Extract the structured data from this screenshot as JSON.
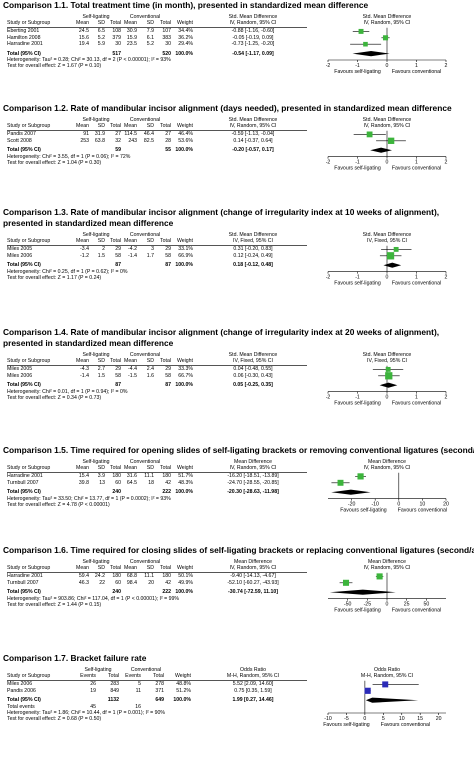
{
  "comparisons": [
    {
      "title": "Comparison 1.1. Total treatment time (in month), presented in standardized mean difference",
      "group1": "Self-ligating",
      "group2": "Conventional",
      "columns": [
        "Study or Subgroup",
        "Mean",
        "SD",
        "Total",
        "Mean",
        "SD",
        "Total",
        "Weight"
      ],
      "effect_header": "Std. Mean Difference",
      "effect_method": "IV, Random, 95% CI",
      "plot_header": "Std. Mean Difference",
      "plot_method": "IV, Random, 95% CI",
      "studies": [
        {
          "name": "Eberting 2001",
          "cells": [
            "24.5",
            "6.5",
            "108",
            "30.9",
            "7.9",
            "107",
            "34.4%"
          ],
          "ci_text": "-0.88 [-1.16, -0.60]",
          "est": -0.88,
          "lo": -1.16,
          "hi": -0.6,
          "w": 34.4
        },
        {
          "name": "Hamilton 2008",
          "cells": [
            "15.6",
            "5.2",
            "379",
            "15.9",
            "6.1",
            "383",
            "36.2%"
          ],
          "ci_text": "-0.05 [-0.19, 0.09]",
          "est": -0.05,
          "lo": -0.19,
          "hi": 0.09,
          "w": 36.2
        },
        {
          "name": "Harradine 2001",
          "cells": [
            "19.4",
            "5.9",
            "30",
            "23.5",
            "5.2",
            "30",
            "29.4%"
          ],
          "ci_text": "-0.73 [-1.25, -0.20]",
          "est": -0.73,
          "lo": -1.25,
          "hi": -0.2,
          "w": 29.4
        }
      ],
      "total": {
        "label": "Total (95% CI)",
        "n1": "517",
        "n2": "520",
        "weight": "100.0%",
        "ci_text": "-0.54 [-1.17, 0.09]",
        "est": -0.54,
        "lo": -1.17,
        "hi": 0.09
      },
      "heterogeneity": "Heterogeneity: Tau² = 0.28; Chi² = 30.13, df = 2 (P < 0.00001); I² = 93%",
      "overall": "Test for overall effect: Z = 1.67 (P = 0.10)",
      "axis": {
        "min": -2,
        "max": 2,
        "ticks": [
          "-2",
          "-1",
          "0",
          "1",
          "2"
        ]
      },
      "favours_left": "Favours self-ligating",
      "favours_right": "Favours conventional"
    },
    {
      "title": "Comparison 1.2. Rate of mandibular incisor alignment (days needed), presented in standardized mean difference",
      "group1": "Self-ligating",
      "group2": "Conventional",
      "columns": [
        "Study or Subgroup",
        "Mean",
        "SD",
        "Total",
        "Mean",
        "SD",
        "Total",
        "Weight"
      ],
      "effect_header": "Std. Mean Difference",
      "effect_method": "IV, Random, 95% CI",
      "plot_header": "Std. Mean Difference",
      "plot_method": "IV, Random, 95% CI",
      "studies": [
        {
          "name": "Pandis 2007",
          "cells": [
            "91",
            "31.9",
            "27",
            "114.5",
            "46.4",
            "27",
            "46.4%"
          ],
          "ci_text": "-0.59 [-1.13, -0.04]",
          "est": -0.59,
          "lo": -1.13,
          "hi": -0.04,
          "w": 46.4
        },
        {
          "name": "Scott 2008",
          "cells": [
            "253",
            "63.8",
            "32",
            "243",
            "82.5",
            "28",
            "53.6%"
          ],
          "ci_text": "0.14 [-0.37, 0.64]",
          "est": 0.14,
          "lo": -0.37,
          "hi": 0.64,
          "w": 53.6
        }
      ],
      "total": {
        "label": "Total (95% CI)",
        "n1": "59",
        "n2": "55",
        "weight": "100.0%",
        "ci_text": "-0.20 [-0.57, 0.17]",
        "est": -0.2,
        "lo": -0.57,
        "hi": 0.17
      },
      "heterogeneity": "Heterogeneity: Chi² = 3.55, df = 1 (P = 0.06); I² = 72%",
      "overall": "Test for overall effect: Z = 1.04 (P = 0.30)",
      "axis": {
        "min": -2,
        "max": 2,
        "ticks": [
          "-2",
          "-1",
          "0",
          "1",
          "2"
        ]
      },
      "favours_left": "Favours self-ligating",
      "favours_right": "Favours conventional"
    },
    {
      "title": "Comparison 1.3. Rate of mandibular incisor alignment (change of irregularity index at 10 weeks of alignment), presented in standardized mean difference",
      "title_line1": "Comparison 1.3. Rate of mandibular incisor alignment (change of irregularity index at 10 weeks of alignment),",
      "title_line2": "presented in standardized mean difference",
      "group1": "Self-ligating",
      "group2": "Conventional",
      "columns": [
        "Study or Subgroup",
        "Mean",
        "SD",
        "Total",
        "Mean",
        "SD",
        "Total",
        "Weight"
      ],
      "effect_header": "Std. Mean Difference",
      "effect_method": "IV, Fixed, 95% CI",
      "plot_header": "Std. Mean Difference",
      "plot_method": "IV, Fixed, 95% CI",
      "studies": [
        {
          "name": "Miles 2005",
          "cells": [
            "-3.4",
            "2",
            "29",
            "-4.2",
            "3",
            "29",
            "33.1%"
          ],
          "ci_text": "0.31 [-0.20, 0.83]",
          "est": 0.31,
          "lo": -0.2,
          "hi": 0.83,
          "w": 33.1
        },
        {
          "name": "Miles 2006",
          "cells": [
            "-1.2",
            "1.5",
            "58",
            "-1.4",
            "1.7",
            "58",
            "66.9%"
          ],
          "ci_text": "0.12 [-0.24, 0.49]",
          "est": 0.12,
          "lo": -0.24,
          "hi": 0.49,
          "w": 66.9
        }
      ],
      "total": {
        "label": "Total (95% CI)",
        "n1": "87",
        "n2": "87",
        "weight": "100.0%",
        "ci_text": "0.18 [-0.12, 0.48]",
        "est": 0.18,
        "lo": -0.12,
        "hi": 0.48
      },
      "heterogeneity": "Heterogeneity: Chi² = 0.25, df = 1 (P = 0.62); I² = 0%",
      "overall": "Test for overall effect: Z = 1.17 (P = 0.24)",
      "axis": {
        "min": -2,
        "max": 2,
        "ticks": [
          "-2",
          "-1",
          "0",
          "1",
          "2"
        ]
      },
      "favours_left": "Favours self-ligating",
      "favours_right": "Favours conventional"
    },
    {
      "title": "Comparison 1.4. Rate of mandibular incisor alignment (change of irregularity index at 20 weeks of alignment), presented in standardized mean difference",
      "title_line1": "Comparison 1.4. Rate of mandibular incisor alignment (change of irregularity index at 20 weeks of alignment),",
      "title_line2": "presented in standardized mean difference",
      "group1": "Self-ligating",
      "group2": "Conventional",
      "columns": [
        "Study or Subgroup",
        "Mean",
        "SD",
        "Total",
        "Mean",
        "SD",
        "Total",
        "Weight"
      ],
      "effect_header": "Std. Mean Difference",
      "effect_method": "IV, Fixed, 95% CI",
      "plot_header": "Std. Mean Difference",
      "plot_method": "IV, Fixed, 95% CI",
      "studies": [
        {
          "name": "Miles 2005",
          "cells": [
            "-4.3",
            "2.7",
            "29",
            "-4.4",
            "2.4",
            "29",
            "33.3%"
          ],
          "ci_text": "0.04 [-0.48, 0.55]",
          "est": 0.04,
          "lo": -0.48,
          "hi": 0.55,
          "w": 33.3
        },
        {
          "name": "Miles 2006",
          "cells": [
            "-1.4",
            "1.5",
            "58",
            "-1.5",
            "1.6",
            "58",
            "66.7%"
          ],
          "ci_text": "0.06 [-0.30, 0.43]",
          "est": 0.06,
          "lo": -0.3,
          "hi": 0.43,
          "w": 66.7
        }
      ],
      "total": {
        "label": "Total (95% CI)",
        "n1": "87",
        "n2": "87",
        "weight": "100.0%",
        "ci_text": "0.05 [-0.25, 0.35]",
        "est": 0.05,
        "lo": -0.25,
        "hi": 0.35
      },
      "heterogeneity": "Heterogeneity: Chi² = 0.01, df = 1 (P = 0.94); I² = 0%",
      "overall": "Test for overall effect: Z = 0.34 (P = 0.73)",
      "axis": {
        "min": -2,
        "max": 2,
        "ticks": [
          "-2",
          "-1",
          "0",
          "1",
          "2"
        ]
      },
      "favours_left": "Favours self-ligating",
      "favours_right": "Favours conventional"
    },
    {
      "title": "Comparison 1.5. Time required for opening slides of self-ligating brackets or removing conventional ligatures (second/arch)",
      "group1": "Self-ligating",
      "group2": "Conventional",
      "columns": [
        "Study or Subgroup",
        "Mean",
        "SD",
        "Total",
        "Mean",
        "SD",
        "Total",
        "Weight"
      ],
      "effect_header": "Mean Difference",
      "effect_method": "IV, Random, 95% CI",
      "plot_header": "Mean Difference",
      "plot_method": "IV, Random, 95% CI",
      "studies": [
        {
          "name": "Harradine 2001",
          "cells": [
            "15.4",
            "3.9",
            "180",
            "31.6",
            "11.1",
            "180",
            "51.7%"
          ],
          "ci_text": "-16.20 [-18.51, -13.89]",
          "est": -16.2,
          "lo": -18.51,
          "hi": -13.89,
          "w": 51.7
        },
        {
          "name": "Turnbull 2007",
          "cells": [
            "39.8",
            "13",
            "60",
            "64.5",
            "18",
            "42",
            "48.3%"
          ],
          "ci_text": "-24.70 [-28.55, -20.85]",
          "est": -24.7,
          "lo": -28.55,
          "hi": -20.85,
          "w": 48.3
        }
      ],
      "total": {
        "label": "Total (95% CI)",
        "n1": "240",
        "n2": "222",
        "weight": "100.0%",
        "ci_text": "-20.30 [-28.63, -11.98]",
        "est": -20.3,
        "lo": -28.63,
        "hi": -11.98
      },
      "heterogeneity": "Heterogeneity: Tau² = 33.50; Chi² = 13.77, df = 1 (P = 0.0002); I² = 93%",
      "overall": "Test for overall effect: Z = 4.78 (P < 0.00001)",
      "axis": {
        "min": -30,
        "max": 20,
        "ticks": [
          "-20",
          "-10",
          "0",
          "10",
          "20"
        ],
        "tick_values": [
          -20,
          -10,
          0,
          10,
          20
        ]
      },
      "favours_left": "Favours self-ligating",
      "favours_right": "Favours conventional"
    },
    {
      "title": "Comparison 1.6. Time required for closing slides of self-ligating brackets or replacing conventional ligatures (second/arch)",
      "group1": "Self-ligating",
      "group2": "Conventional",
      "columns": [
        "Study or Subgroup",
        "Mean",
        "SD",
        "Total",
        "Mean",
        "SD",
        "Total",
        "Weight"
      ],
      "effect_header": "Mean Difference",
      "effect_method": "IV, Random, 95% CI",
      "plot_header": "Mean Difference",
      "plot_method": "IV, Random, 95% CI",
      "studies": [
        {
          "name": "Harradine 2001",
          "cells": [
            "59.4",
            "24.2",
            "180",
            "68.8",
            "11.1",
            "180",
            "50.1%"
          ],
          "ci_text": "-9.40 [-14.13, -4.67]",
          "est": -9.4,
          "lo": -14.13,
          "hi": -4.67,
          "w": 50.1
        },
        {
          "name": "Turnbull 2007",
          "cells": [
            "46.3",
            "22",
            "60",
            "98.4",
            "20",
            "42",
            "49.9%"
          ],
          "ci_text": "-52.10 [-60.27, -43.93]",
          "est": -52.1,
          "lo": -60.27,
          "hi": -43.93,
          "w": 49.9
        }
      ],
      "total": {
        "label": "Total (95% CI)",
        "n1": "240",
        "n2": "222",
        "weight": "100.0%",
        "ci_text": "-30.74 [-72.59, 11.10]",
        "est": -30.74,
        "lo": -72.59,
        "hi": 11.1
      },
      "heterogeneity": "Heterogeneity: Tau² = 903.86; Chi² = 117.04, df = 1 (P < 0.00001); I² = 99%",
      "overall": "Test for overall effect: Z = 1.44 (P = 0.15)",
      "axis": {
        "min": -75,
        "max": 75,
        "ticks": [
          "-50",
          "-25",
          "0",
          "25",
          "50"
        ],
        "tick_values": [
          -50,
          -25,
          0,
          25,
          50
        ]
      },
      "favours_left": "Favours self-ligating",
      "favours_right": "Favours conventional"
    },
    {
      "title": "Comparison 1.7. Bracket failure rate",
      "group1": "Self-ligating",
      "group2": "Conventional",
      "columns": [
        "Study or Subgroup",
        "Events",
        "Total",
        "Events",
        "Total",
        "Weight"
      ],
      "effect_header": "Odds Ratio",
      "effect_method": "M-H, Random, 95% CI",
      "plot_header": "Odds Ratio",
      "plot_method": "M-H, Random, 95% CI",
      "studies": [
        {
          "name": "Miles 2006",
          "cells": [
            "26",
            "283",
            "5",
            "278",
            "48.8%"
          ],
          "ci_text": "5.52 [2.09, 14.60]",
          "est": 5.52,
          "lo": 2.09,
          "hi": 14.6,
          "w": 48.8
        },
        {
          "name": "Pandis 2006",
          "cells": [
            "19",
            "849",
            "11",
            "371",
            "51.2%"
          ],
          "ci_text": "0.75 [0.35, 1.59]",
          "est": 0.75,
          "lo": 0.35,
          "hi": 1.59,
          "w": 51.2
        }
      ],
      "total": {
        "label": "Total (95% CI)",
        "n1": "1132",
        "n2": "649",
        "weight": "100.0%",
        "ci_text": "1.99 [0.27, 14.46]",
        "est": 1.99,
        "lo": 0.27,
        "hi": 14.46
      },
      "total_events": {
        "label": "Total events",
        "e1": "45",
        "e2": "16"
      },
      "heterogeneity": "Heterogeneity: Tau² = 1.86; Chi² = 10.44, df = 1 (P = 0.001); I² = 90%",
      "overall": "Test for overall effect: Z = 0.68 (P = 0.50)",
      "axis": {
        "min": -10,
        "max": 22,
        "ticks": [
          "-10",
          "-5",
          "0",
          "5",
          "10",
          "15",
          "20"
        ],
        "tick_values": [
          -10,
          -5,
          0,
          5,
          10,
          15,
          20
        ]
      },
      "favours_left": "Favours self-ligating",
      "favours_right": "Favours conventional"
    }
  ],
  "chart_data": [
    {
      "type": "forest",
      "title": "Comparison 1.1. Total treatment time (in month), presented in standardized mean difference",
      "series": [
        {
          "name": "Eberting 2001",
          "values": [
            -0.88,
            -1.16,
            -0.6
          ]
        },
        {
          "name": "Hamilton 2008",
          "values": [
            -0.05,
            -0.19,
            0.09
          ]
        },
        {
          "name": "Harradine 2001",
          "values": [
            -0.73,
            -1.25,
            -0.2
          ]
        },
        {
          "name": "Total (95% CI)",
          "values": [
            -0.54,
            -1.17,
            0.09
          ]
        }
      ],
      "xlim": [
        -2,
        2
      ]
    },
    {
      "type": "forest",
      "title": "Comparison 1.2. Rate of mandibular incisor alignment (days needed), presented in standardized mean difference",
      "series": [
        {
          "name": "Pandis 2007",
          "values": [
            -0.59,
            -1.13,
            -0.04
          ]
        },
        {
          "name": "Scott 2008",
          "values": [
            0.14,
            -0.37,
            0.64
          ]
        },
        {
          "name": "Total (95% CI)",
          "values": [
            -0.2,
            -0.57,
            0.17
          ]
        }
      ],
      "xlim": [
        -2,
        2
      ]
    },
    {
      "type": "forest",
      "title": "Comparison 1.3. Rate of mandibular incisor alignment (change of irregularity index at 10 weeks of alignment), presented in standardized mean difference",
      "series": [
        {
          "name": "Miles 2005",
          "values": [
            0.31,
            -0.2,
            0.83
          ]
        },
        {
          "name": "Miles 2006",
          "values": [
            0.12,
            -0.24,
            0.49
          ]
        },
        {
          "name": "Total (95% CI)",
          "values": [
            0.18,
            -0.12,
            0.48
          ]
        }
      ],
      "xlim": [
        -2,
        2
      ]
    },
    {
      "type": "forest",
      "title": "Comparison 1.4. Rate of mandibular incisor alignment (change of irregularity index at 20 weeks of alignment), presented in standardized mean difference",
      "series": [
        {
          "name": "Miles 2005",
          "values": [
            0.04,
            -0.48,
            0.55
          ]
        },
        {
          "name": "Miles 2006",
          "values": [
            0.06,
            -0.3,
            0.43
          ]
        },
        {
          "name": "Total (95% CI)",
          "values": [
            0.05,
            -0.25,
            0.35
          ]
        }
      ],
      "xlim": [
        -2,
        2
      ]
    },
    {
      "type": "forest",
      "title": "Comparison 1.5. Time required for opening slides of self-ligating brackets or removing conventional ligatures (second/arch)",
      "series": [
        {
          "name": "Harradine 2001",
          "values": [
            -16.2,
            -18.51,
            -13.89
          ]
        },
        {
          "name": "Turnbull 2007",
          "values": [
            -24.7,
            -28.55,
            -20.85
          ]
        },
        {
          "name": "Total (95% CI)",
          "values": [
            -20.3,
            -28.63,
            -11.98
          ]
        }
      ],
      "xlim": [
        -30,
        20
      ]
    },
    {
      "type": "forest",
      "title": "Comparison 1.6. Time required for closing slides of self-ligating brackets or replacing conventional ligatures (second/arch)",
      "series": [
        {
          "name": "Harradine 2001",
          "values": [
            -9.4,
            -14.13,
            -4.67
          ]
        },
        {
          "name": "Turnbull 2007",
          "values": [
            -52.1,
            -60.27,
            -43.93
          ]
        },
        {
          "name": "Total (95% CI)",
          "values": [
            -30.74,
            -72.59,
            11.1
          ]
        }
      ],
      "xlim": [
        -75,
        75
      ]
    },
    {
      "type": "forest",
      "title": "Comparison 1.7. Bracket failure rate",
      "series": [
        {
          "name": "Miles 2006",
          "values": [
            5.52,
            2.09,
            14.6
          ]
        },
        {
          "name": "Pandis 2006",
          "values": [
            0.75,
            0.35,
            1.59
          ]
        },
        {
          "name": "Total (95% CI)",
          "values": [
            1.99,
            0.27,
            14.46
          ]
        }
      ],
      "xlim": [
        -10,
        22
      ]
    }
  ],
  "colors": {
    "study_marker": "#3cb43c",
    "or_marker": "#2b2bb8",
    "diamond": "#000000",
    "axis": "#000000"
  }
}
